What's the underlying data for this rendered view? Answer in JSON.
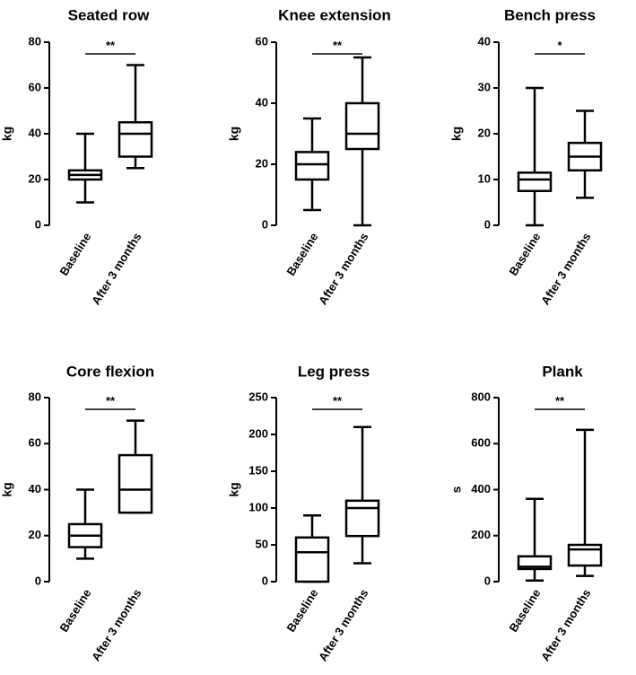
{
  "chart_data": [
    {
      "type": "box",
      "title": "Seated row",
      "ylabel": "kg",
      "ylim": [
        0,
        80
      ],
      "yticks": [
        0,
        20,
        40,
        60,
        80
      ],
      "categories": [
        "Baseline",
        "After 3 months"
      ],
      "boxes": [
        {
          "min": 10,
          "q1": 20,
          "median": 22,
          "q3": 24,
          "max": 40
        },
        {
          "min": 25,
          "q1": 30,
          "median": 40,
          "q3": 45,
          "max": 70
        }
      ],
      "significance": "**"
    },
    {
      "type": "box",
      "title": "Knee extension",
      "ylabel": "kg",
      "ylim": [
        0,
        60
      ],
      "yticks": [
        0,
        20,
        40,
        60
      ],
      "categories": [
        "Baseline",
        "After 3 months"
      ],
      "boxes": [
        {
          "min": 5,
          "q1": 15,
          "median": 20,
          "q3": 24,
          "max": 35
        },
        {
          "min": 0,
          "q1": 25,
          "median": 30,
          "q3": 40,
          "max": 55
        }
      ],
      "significance": "**"
    },
    {
      "type": "box",
      "title": "Bench press",
      "ylabel": "kg",
      "ylim": [
        0,
        40
      ],
      "yticks": [
        0,
        10,
        20,
        30,
        40
      ],
      "categories": [
        "Baseline",
        "After 3 months"
      ],
      "boxes": [
        {
          "min": 0,
          "q1": 7.5,
          "median": 10,
          "q3": 11.5,
          "max": 30
        },
        {
          "min": 6,
          "q1": 12,
          "median": 15,
          "q3": 18,
          "max": 25
        }
      ],
      "significance": "*"
    },
    {
      "type": "box",
      "title": "Core flexion",
      "ylabel": "kg",
      "ylim": [
        0,
        80
      ],
      "yticks": [
        0,
        20,
        40,
        60,
        80
      ],
      "categories": [
        "Baseline",
        "After 3 months"
      ],
      "boxes": [
        {
          "min": 10,
          "q1": 15,
          "median": 20,
          "q3": 25,
          "max": 40
        },
        {
          "min": 30,
          "q1": 30,
          "median": 40,
          "q3": 55,
          "max": 70
        }
      ],
      "significance": "**"
    },
    {
      "type": "box",
      "title": "Leg press",
      "ylabel": "kg",
      "ylim": [
        0,
        250
      ],
      "yticks": [
        0,
        50,
        100,
        150,
        200,
        250
      ],
      "categories": [
        "Baseline",
        "After 3 months"
      ],
      "boxes": [
        {
          "min": 0,
          "q1": 0,
          "median": 40,
          "q3": 60,
          "max": 90
        },
        {
          "min": 25,
          "q1": 62,
          "median": 100,
          "q3": 110,
          "max": 210
        }
      ],
      "significance": "**"
    },
    {
      "type": "box",
      "title": "Plank",
      "ylabel": "s",
      "ylim": [
        0,
        800
      ],
      "yticks": [
        0,
        200,
        400,
        600,
        800
      ],
      "categories": [
        "Baseline",
        "After 3 months"
      ],
      "boxes": [
        {
          "min": 5,
          "q1": 55,
          "median": 65,
          "q3": 110,
          "max": 360
        },
        {
          "min": 25,
          "q1": 70,
          "median": 140,
          "q3": 160,
          "max": 660
        }
      ],
      "significance": "**"
    }
  ]
}
